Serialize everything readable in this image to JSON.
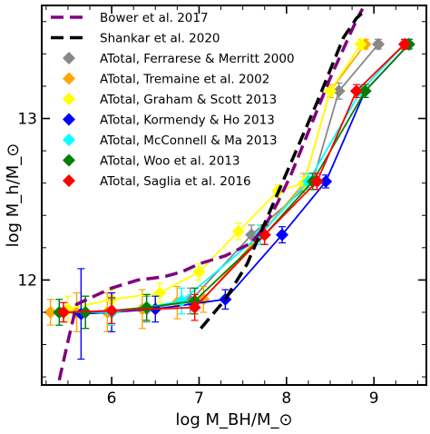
{
  "chart_data": {
    "type": "line",
    "xlabel": "log M_BH/M_⊙",
    "ylabel": "log M_h/M_⊙",
    "xlim": [
      5.2,
      9.6
    ],
    "ylim": [
      11.35,
      13.7
    ],
    "xticks": [
      6,
      7,
      8,
      9
    ],
    "xtick_labels": [
      "6",
      "7",
      "8",
      "9"
    ],
    "yticks": [
      12,
      13
    ],
    "ytick_labels": [
      "12",
      "13"
    ],
    "legend_position": "top-left",
    "grid": false,
    "model_curves": [
      {
        "name": "Bower et al. 2017",
        "color": "#800080",
        "dash": "long",
        "x": [
          5.4,
          5.5,
          5.6,
          5.8,
          6.0,
          6.3,
          6.6,
          6.8,
          7.0,
          7.3,
          7.6,
          7.75,
          7.9,
          8.05,
          8.2,
          8.35,
          8.5,
          8.65,
          8.75,
          8.82,
          8.87
        ],
        "y": [
          11.38,
          11.62,
          11.85,
          11.9,
          11.95,
          12.0,
          12.02,
          12.05,
          12.1,
          12.15,
          12.23,
          12.33,
          12.48,
          12.65,
          12.85,
          13.05,
          13.25,
          13.43,
          13.55,
          13.63,
          13.68
        ]
      },
      {
        "name": "Shankar et al. 2020",
        "color": "#000000",
        "dash": "long",
        "x": [
          7.02,
          7.3,
          7.55,
          7.75,
          7.95,
          8.15,
          8.35,
          8.5,
          8.65,
          8.8,
          8.9
        ],
        "y": [
          11.7,
          11.88,
          12.1,
          12.35,
          12.6,
          12.85,
          13.1,
          13.3,
          13.5,
          13.62,
          13.67
        ]
      }
    ],
    "series": [
      {
        "name": "ATotal, Ferrarese & Merritt 2000",
        "color": "#888888",
        "x": [
          5.45,
          5.7,
          6.0,
          6.4,
          6.9,
          7.6,
          8.3,
          8.6,
          9.05
        ],
        "y": [
          11.8,
          11.8,
          11.8,
          11.82,
          11.87,
          12.28,
          12.61,
          13.17,
          13.46
        ],
        "yerr": [
          0.06,
          0.1,
          0.08,
          0.08,
          0.08,
          0.06,
          0.05,
          0.05,
          0.03
        ]
      },
      {
        "name": "ATotal, Tremaine et al. 2002",
        "color": "#ffa500",
        "x": [
          5.3,
          5.6,
          5.95,
          6.35,
          6.75,
          7.05,
          7.7,
          8.2,
          8.5,
          8.9
        ],
        "y": [
          11.8,
          11.8,
          11.8,
          11.82,
          11.86,
          11.88,
          12.28,
          12.6,
          13.17,
          13.46
        ],
        "yerr": [
          0.08,
          0.12,
          0.12,
          0.12,
          0.1,
          0.08,
          0.06,
          0.06,
          0.04,
          0.03
        ]
      },
      {
        "name": "ATotal, Graham & Scott 2013",
        "color": "#ffff00",
        "x": [
          5.5,
          6.0,
          6.55,
          7.0,
          7.45,
          7.9,
          8.2,
          8.5,
          8.85
        ],
        "y": [
          11.82,
          11.88,
          11.92,
          12.05,
          12.3,
          12.55,
          12.6,
          13.17,
          13.46
        ],
        "yerr": [
          0.08,
          0.06,
          0.06,
          0.05,
          0.05,
          0.04,
          0.04,
          0.03,
          0.03
        ]
      },
      {
        "name": "ATotal, Kormendy & Ho 2013",
        "color": "#0000ff",
        "x": [
          5.65,
          6.0,
          6.5,
          7.3,
          7.95,
          8.45,
          8.9,
          9.4
        ],
        "y": [
          11.79,
          11.8,
          11.82,
          11.88,
          12.28,
          12.61,
          13.17,
          13.46
        ],
        "yerr": [
          0.28,
          0.12,
          0.08,
          0.06,
          0.05,
          0.04,
          0.04,
          0.03
        ]
      },
      {
        "name": "ATotal, McConnell & Ma 2013",
        "color": "#00ffff",
        "x": [
          5.4,
          5.7,
          6.0,
          6.4,
          6.8,
          7.7,
          8.25,
          8.85,
          9.35
        ],
        "y": [
          11.8,
          11.8,
          11.8,
          11.83,
          11.87,
          12.28,
          12.61,
          13.17,
          13.46
        ],
        "yerr": [
          0.08,
          0.1,
          0.08,
          0.08,
          0.08,
          0.06,
          0.05,
          0.04,
          0.03
        ]
      },
      {
        "name": "ATotal, Woo et al. 2013",
        "color": "#008000",
        "x": [
          5.4,
          5.7,
          6.0,
          6.4,
          6.95,
          7.75,
          8.3,
          8.9,
          9.4
        ],
        "y": [
          11.8,
          11.8,
          11.81,
          11.83,
          11.87,
          12.28,
          12.61,
          13.17,
          13.46
        ],
        "yerr": [
          0.08,
          0.1,
          0.08,
          0.08,
          0.08,
          0.06,
          0.05,
          0.04,
          0.03
        ]
      },
      {
        "name": "ATotal, Saglia et al. 2016",
        "color": "#ff0000",
        "x": [
          5.45,
          6.0,
          6.95,
          7.75,
          8.35,
          8.8,
          9.35
        ],
        "y": [
          11.8,
          11.81,
          11.83,
          12.28,
          12.61,
          13.17,
          13.46
        ],
        "yerr": [
          0.06,
          0.08,
          0.08,
          0.06,
          0.05,
          0.04,
          0.03
        ]
      }
    ]
  }
}
